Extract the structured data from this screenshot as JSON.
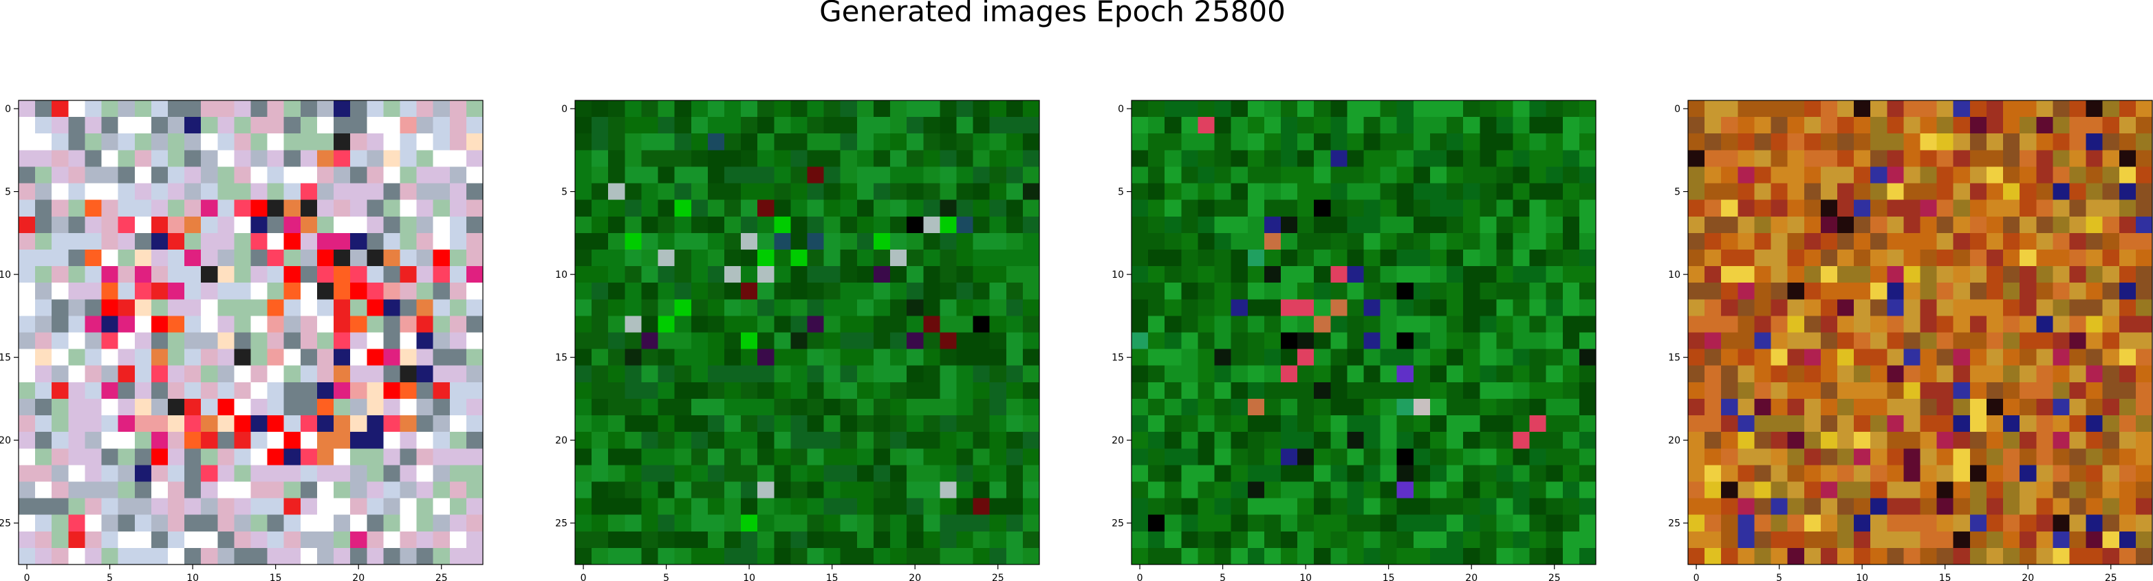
{
  "figure": {
    "title": "Generated images Epoch 25800"
  },
  "chart_data": [
    {
      "type": "heatmap",
      "grid_size": 28,
      "xlim": [
        0,
        27
      ],
      "ylim": [
        27,
        0
      ],
      "x_ticks": [
        0,
        5,
        10,
        15,
        20,
        25
      ],
      "y_ticks": [
        0,
        5,
        10,
        15,
        20,
        25
      ],
      "palette": "multicolor",
      "colors": [
        "#c8d4e8",
        "#e0b4c8",
        "#9fc8a8",
        "#b0b8c8",
        "#d8c0e0",
        "#ffffff",
        "#708088"
      ],
      "feature_colors": [
        "#ff0000",
        "#ee2020",
        "#ff6020",
        "#e88040",
        "#ff4060",
        "#e02080",
        "#1a1a70",
        "#202020",
        "#ffe0c0",
        "#f0a0a0"
      ],
      "feature": "ring"
    },
    {
      "type": "heatmap",
      "grid_size": 28,
      "xlim": [
        0,
        27
      ],
      "ylim": [
        27,
        0
      ],
      "x_ticks": [
        0,
        5,
        10,
        15,
        20,
        25
      ],
      "y_ticks": [
        0,
        5,
        10,
        15,
        20,
        25
      ],
      "palette": "green",
      "colors": [
        "#0b5e0b",
        "#086e08",
        "#0a7a12",
        "#065206",
        "#138a1e",
        "#0e6420",
        "#044a04",
        "#16942a"
      ],
      "feature_colors": [
        "#000000",
        "#0a2a0a",
        "#3a0a4a",
        "#6a0a0a",
        "#b0c0c0",
        "#1a4a60",
        "#00cc00"
      ],
      "feature": "center"
    },
    {
      "type": "heatmap",
      "grid_size": 28,
      "xlim": [
        0,
        27
      ],
      "ylim": [
        27,
        0
      ],
      "x_ticks": [
        0,
        5,
        10,
        15,
        20,
        25
      ],
      "y_ticks": [
        0,
        5,
        10,
        15,
        20,
        25
      ],
      "palette": "green",
      "colors": [
        "#0a6a0a",
        "#0c780c",
        "#085e08",
        "#129020",
        "#066a16",
        "#044a04",
        "#18a02a"
      ],
      "feature_colors": [
        "#000000",
        "#0a1a0a",
        "#202088",
        "#6030c8",
        "#e04060",
        "#c8c0c0",
        "#c87040",
        "#20a060"
      ],
      "feature": "left-center"
    },
    {
      "type": "heatmap",
      "grid_size": 28,
      "xlim": [
        0,
        27
      ],
      "ylim": [
        27,
        0
      ],
      "x_ticks": [
        0,
        5,
        10,
        15,
        20,
        25
      ],
      "y_ticks": [
        0,
        5,
        10,
        15,
        20,
        25
      ],
      "palette": "warm",
      "colors": [
        "#c86a10",
        "#a85a10",
        "#d08820",
        "#b84810",
        "#987820",
        "#c89830",
        "#a03020",
        "#8a5020",
        "#d07028"
      ],
      "feature_colors": [
        "#1a1a80",
        "#600a30",
        "#e0c020",
        "#3030a0",
        "#200a0a",
        "#b02050",
        "#f0d040"
      ],
      "feature": "scatter"
    }
  ]
}
